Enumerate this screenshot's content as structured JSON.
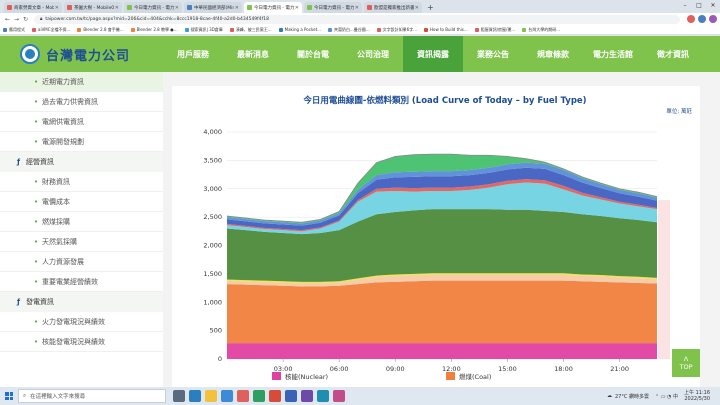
{
  "browser": {
    "tabs": [
      {
        "title": "商家勞資文章 - Mobile01",
        "color": "#e25c5c",
        "active": false
      },
      {
        "title": "茶園大樹 - Mobile01",
        "color": "#e25c5c",
        "active": false
      },
      {
        "title": "今日電力資訊 - 電力供需資訊",
        "color": "#7fc34c",
        "active": false
      },
      {
        "title": "中華民國經濟部(Ministry of Econ",
        "color": "#4a7fc1",
        "active": false
      },
      {
        "title": "今日電力資訊 - 電力供需資訊",
        "color": "#7fc34c",
        "active": true
      },
      {
        "title": "今日電力資訊 - 電力供需資訊",
        "color": "#7fc34c",
        "active": false
      },
      {
        "title": "歐盟是獨家推出新書 蕭景倫導讀",
        "color": "#e25c5c",
        "active": false
      }
    ],
    "url": "taipower.com.tw/tc/page.aspx?mid=206&cid=404&cchk=8ccc1918-8cae-4f40-a2d0-b434549f4f18",
    "bookmarks": [
      "應用程式",
      "aiVMC全檔不保...",
      "Blender 2.8 會手機...",
      "Blender 2.8 教學 ●...",
      "搜索資訊| 3D倉庫",
      "湊峰，被三民黨王...",
      "Making a Pocket...",
      "夾窩奶白...曼谷國...",
      "文字設計如果6字...",
      "How to Build this...",
      "租屋資訊/房屋/運...",
      "台灣大學的期研..."
    ]
  },
  "header": {
    "logo_text": "台灣電力公司",
    "nav": [
      {
        "label": "用戶服務",
        "active": false
      },
      {
        "label": "最新消息",
        "active": false
      },
      {
        "label": "關於台電",
        "active": false
      },
      {
        "label": "公司治理",
        "active": false
      },
      {
        "label": "資訊揭露",
        "active": true
      },
      {
        "label": "業務公告",
        "active": false
      },
      {
        "label": "規章條款",
        "active": false
      },
      {
        "label": "電力生活館",
        "active": false
      },
      {
        "label": "徵才資訊",
        "active": false
      }
    ]
  },
  "sidebar": {
    "items": [
      {
        "label": "近期電力資訊",
        "type": "item",
        "active": true
      },
      {
        "label": "過去電力供需資訊",
        "type": "item",
        "active": false
      },
      {
        "label": "電網供電資訊",
        "type": "item",
        "active": false
      },
      {
        "label": "電源開發規劃",
        "type": "item",
        "active": false
      },
      {
        "label": "經營資訊",
        "type": "head",
        "active": false
      },
      {
        "label": "財務資訊",
        "type": "item",
        "active": false
      },
      {
        "label": "電價成本",
        "type": "item",
        "active": false
      },
      {
        "label": "燃煤採購",
        "type": "item",
        "active": false
      },
      {
        "label": "天然氣採購",
        "type": "item",
        "active": false
      },
      {
        "label": "人力資源發展",
        "type": "item",
        "active": false
      },
      {
        "label": "重要電業經營績效",
        "type": "item",
        "active": false
      },
      {
        "label": "發電資訊",
        "type": "head",
        "active": false
      },
      {
        "label": "火力發電現況與績效",
        "type": "item",
        "active": false
      },
      {
        "label": "核能發電現況與績效",
        "type": "item",
        "active": false
      }
    ]
  },
  "chart": {
    "title": "今日用電曲線圖-依燃料類別 (Load Curve of Today – by Fuel Type)",
    "unit": "單位: 萬瓩",
    "legend": [
      {
        "label": "核能(Nuclear)",
        "color": "#e040a0"
      },
      {
        "label": "燃煤(Coal)",
        "color": "#f0803c"
      }
    ]
  },
  "chart_data": {
    "type": "area",
    "title": "今日用電曲線圖-依燃料類別 (Load Curve of Today – by Fuel Type)",
    "ylabel": "單位: 萬瓩",
    "ylim": [
      0,
      4000
    ],
    "yticks": [
      0,
      500,
      1000,
      1500,
      2000,
      2500,
      3000,
      3500,
      4000
    ],
    "xticks": [
      "03:00",
      "06:00",
      "09:00",
      "12:00",
      "15:00",
      "18:00",
      "21:00"
    ],
    "x": [
      0,
      1,
      2,
      3,
      4,
      5,
      6,
      7,
      8,
      9,
      10,
      11,
      12,
      13,
      14,
      15,
      16,
      17,
      18,
      19,
      20,
      21,
      22,
      23
    ],
    "series": [
      {
        "name": "核能(Nuclear)",
        "color": "#e040a0",
        "values": [
          280,
          280,
          280,
          280,
          280,
          280,
          280,
          280,
          280,
          280,
          280,
          280,
          280,
          280,
          280,
          280,
          280,
          280,
          280,
          280,
          280,
          280,
          280,
          280
        ]
      },
      {
        "name": "燃煤(Coal)",
        "color": "#f0803c",
        "values": [
          1040,
          1030,
          1020,
          1010,
          1000,
          1000,
          1010,
          1040,
          1070,
          1080,
          1090,
          1100,
          1100,
          1100,
          1100,
          1100,
          1100,
          1100,
          1100,
          1090,
          1080,
          1070,
          1060,
          1050
        ]
      },
      {
        "color": "#f7c9a4",
        "values": [
          60,
          60,
          60,
          60,
          60,
          60,
          60,
          80,
          100,
          110,
          110,
          110,
          110,
          110,
          110,
          110,
          110,
          110,
          110,
          100,
          100,
          90,
          90,
          80
        ]
      },
      {
        "color": "#f2e632",
        "values": [
          20,
          20,
          20,
          20,
          20,
          20,
          20,
          20,
          20,
          20,
          20,
          20,
          20,
          20,
          20,
          20,
          20,
          20,
          20,
          20,
          20,
          20,
          20,
          20
        ]
      },
      {
        "color": "#4c8a3a",
        "values": [
          900,
          880,
          860,
          850,
          840,
          860,
          900,
          1000,
          1080,
          1100,
          1120,
          1130,
          1130,
          1130,
          1130,
          1120,
          1120,
          1100,
          1080,
          1060,
          1040,
          1020,
          1000,
          980
        ]
      },
      {
        "color": "#70d2e0",
        "values": [
          60,
          55,
          50,
          50,
          50,
          80,
          150,
          350,
          400,
          370,
          330,
          320,
          320,
          340,
          380,
          450,
          480,
          480,
          400,
          330,
          290,
          260,
          240,
          230
        ]
      },
      {
        "color": "#e0605e",
        "values": [
          20,
          20,
          20,
          20,
          20,
          20,
          20,
          30,
          50,
          60,
          60,
          60,
          60,
          60,
          60,
          60,
          60,
          60,
          60,
          50,
          40,
          30,
          30,
          20
        ]
      },
      {
        "color": "#3f5fc0",
        "values": [
          80,
          80,
          80,
          80,
          80,
          80,
          90,
          120,
          160,
          180,
          200,
          200,
          200,
          200,
          200,
          200,
          200,
          200,
          190,
          180,
          160,
          150,
          140,
          130
        ]
      },
      {
        "color": "#5a8cd8",
        "values": [
          40,
          40,
          40,
          40,
          40,
          40,
          40,
          60,
          80,
          90,
          90,
          90,
          90,
          90,
          90,
          90,
          90,
          90,
          90,
          80,
          70,
          60,
          60,
          50
        ]
      },
      {
        "color": "#45c06c",
        "values": [
          20,
          20,
          20,
          20,
          20,
          20,
          30,
          120,
          220,
          280,
          300,
          300,
          300,
          260,
          220,
          140,
          70,
          30,
          20,
          20,
          20,
          20,
          20,
          20
        ]
      }
    ]
  },
  "widgets": {
    "top_button": "TOP",
    "top_arrow": "Λ"
  },
  "taskbar": {
    "search_placeholder": "在這裡輸入文字來搜尋",
    "weather": "27°C 鑽時多雲",
    "time": "上午 11:16",
    "date": "2022/5/30"
  }
}
